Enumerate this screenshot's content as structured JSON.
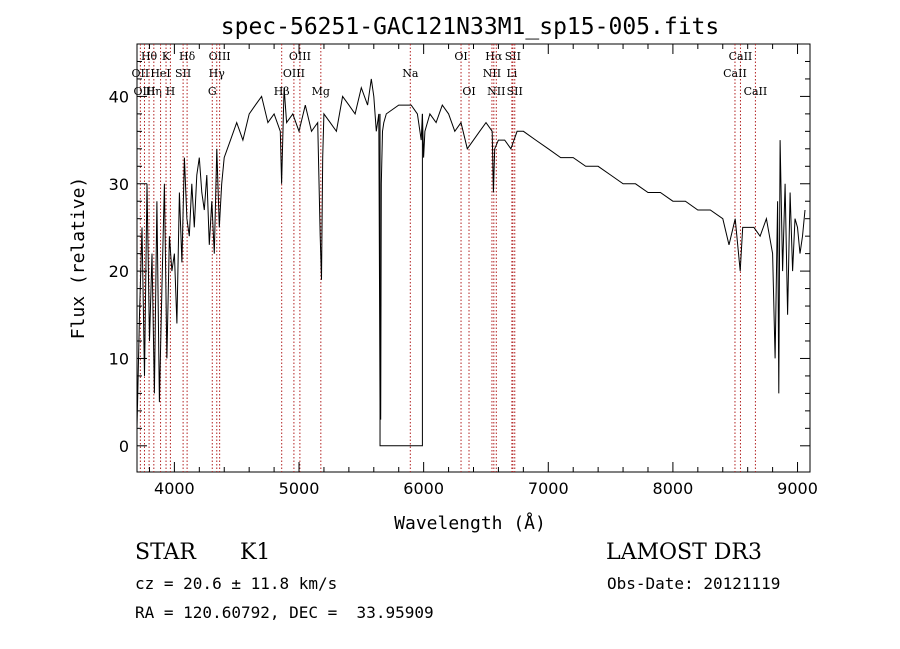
{
  "chart_data": {
    "type": "line",
    "title": "spec-56251-GAC121N33M1_sp15-005.fits",
    "xlabel": "Wavelength (Å)",
    "ylabel": "Flux (relative)",
    "xlim": [
      3700,
      9100
    ],
    "ylim": [
      -3,
      46
    ],
    "xticks": [
      4000,
      5000,
      6000,
      7000,
      8000,
      9000
    ],
    "xtick_labels": [
      "4000",
      "5000",
      "6000",
      "7000",
      "8000",
      "9000"
    ],
    "yticks": [
      0,
      10,
      20,
      30,
      40
    ],
    "ytick_labels": [
      "0",
      "10",
      "20",
      "30",
      "40"
    ],
    "series": [
      {
        "name": "flux",
        "x": [
          3700,
          3720,
          3740,
          3760,
          3780,
          3800,
          3820,
          3840,
          3860,
          3880,
          3900,
          3920,
          3940,
          3960,
          3980,
          4000,
          4020,
          4040,
          4060,
          4080,
          4100,
          4120,
          4140,
          4160,
          4180,
          4200,
          4220,
          4240,
          4260,
          4280,
          4300,
          4320,
          4340,
          4360,
          4380,
          4400,
          4450,
          4500,
          4550,
          4600,
          4650,
          4700,
          4750,
          4800,
          4850,
          4860,
          4880,
          4900,
          4950,
          5000,
          5050,
          5100,
          5150,
          5170,
          5180,
          5190,
          5200,
          5250,
          5300,
          5350,
          5400,
          5450,
          5500,
          5550,
          5580,
          5600,
          5620,
          5640,
          5650,
          5655,
          5660,
          5670,
          5680,
          5700,
          5800,
          5900,
          5950,
          5980,
          5990,
          6000,
          6010,
          6050,
          6100,
          6150,
          6200,
          6250,
          6300,
          6350,
          6400,
          6450,
          6500,
          6550,
          6560,
          6570,
          6600,
          6650,
          6700,
          6750,
          6800,
          6900,
          7000,
          7100,
          7200,
          7300,
          7400,
          7500,
          7600,
          7700,
          7800,
          7900,
          8000,
          8100,
          8200,
          8300,
          8400,
          8450,
          8500,
          8540,
          8560,
          8600,
          8650,
          8700,
          8750,
          8800,
          8820,
          8840,
          8850,
          8860,
          8880,
          8900,
          8920,
          8940,
          8960,
          8980,
          9000,
          9020,
          9040,
          9060
        ],
        "y": [
          2,
          15,
          25,
          8,
          30,
          12,
          22,
          6,
          28,
          5,
          18,
          30,
          10,
          24,
          20,
          22,
          14,
          29,
          21,
          33,
          26,
          24,
          30,
          25,
          31,
          33,
          29,
          27,
          31,
          23,
          28,
          22,
          34,
          25,
          30,
          33,
          35,
          37,
          35,
          38,
          39,
          40,
          37,
          38,
          36,
          30,
          41,
          37,
          38,
          36,
          39,
          36,
          37,
          24,
          19,
          33,
          38,
          37,
          36,
          40,
          39,
          38,
          41,
          39,
          42,
          40,
          36,
          38,
          5,
          3,
          30,
          36,
          37,
          38,
          39,
          39,
          38,
          35,
          38,
          33,
          36,
          38,
          37,
          39,
          38,
          36,
          37,
          34,
          35,
          36,
          37,
          36,
          29,
          34,
          35,
          35,
          34,
          36,
          36,
          35,
          34,
          33,
          33,
          32,
          32,
          31,
          30,
          30,
          29,
          29,
          28,
          28,
          27,
          27,
          26,
          23,
          26,
          20,
          25,
          25,
          25,
          24,
          26,
          22,
          10,
          28,
          6,
          35,
          20,
          30,
          15,
          29,
          20,
          26,
          25,
          22,
          24,
          27
        ]
      }
    ],
    "notch": {
      "name": "masked region",
      "x_start": 5650,
      "x_end": 5990,
      "y": 0
    },
    "lines": [
      {
        "label": "Hθ",
        "x": 3797,
        "row": 0
      },
      {
        "label": "OII",
        "x": 3727,
        "row": 1
      },
      {
        "label": "OIII",
        "x": 3760,
        "row": 2
      },
      {
        "label": "Hη",
        "x": 3835,
        "row": 2
      },
      {
        "label": "HeI",
        "x": 3889,
        "row": 1
      },
      {
        "label": "K",
        "x": 3933,
        "row": 0
      },
      {
        "label": "H",
        "x": 3968,
        "row": 2
      },
      {
        "label": "SII",
        "x": 4070,
        "row": 1
      },
      {
        "label": "Hδ",
        "x": 4102,
        "row": 0
      },
      {
        "label": "OIII",
        "x": 4363,
        "row": 0
      },
      {
        "label": "Hγ",
        "x": 4340,
        "row": 1
      },
      {
        "label": "G",
        "x": 4304,
        "row": 2
      },
      {
        "label": "OIII",
        "x": 5007,
        "row": 0
      },
      {
        "label": "OIII",
        "x": 4959,
        "row": 1
      },
      {
        "label": "Hβ",
        "x": 4861,
        "row": 2
      },
      {
        "label": "Mg",
        "x": 5175,
        "row": 2
      },
      {
        "label": "Na",
        "x": 5893,
        "row": 1
      },
      {
        "label": "OI",
        "x": 6300,
        "row": 0
      },
      {
        "label": "OI",
        "x": 6364,
        "row": 2
      },
      {
        "label": "Hα",
        "x": 6563,
        "row": 0
      },
      {
        "label": "SII",
        "x": 6716,
        "row": 0
      },
      {
        "label": "NII",
        "x": 6548,
        "row": 1
      },
      {
        "label": "Li",
        "x": 6708,
        "row": 1
      },
      {
        "label": "NII",
        "x": 6583,
        "row": 2
      },
      {
        "label": "SII",
        "x": 6731,
        "row": 2
      },
      {
        "label": "CaII",
        "x": 8542,
        "row": 0
      },
      {
        "label": "CaII",
        "x": 8498,
        "row": 1
      },
      {
        "label": "CaII",
        "x": 8662,
        "row": 2
      }
    ]
  },
  "info": {
    "class": "STAR",
    "subclass": "K1",
    "survey": "LAMOST DR3",
    "cz": "cz = 20.6 ± 11.8 km/s",
    "obs_date": "Obs-Date: 20121119",
    "radec": "RA = 120.60792, DEC =  33.95909"
  }
}
